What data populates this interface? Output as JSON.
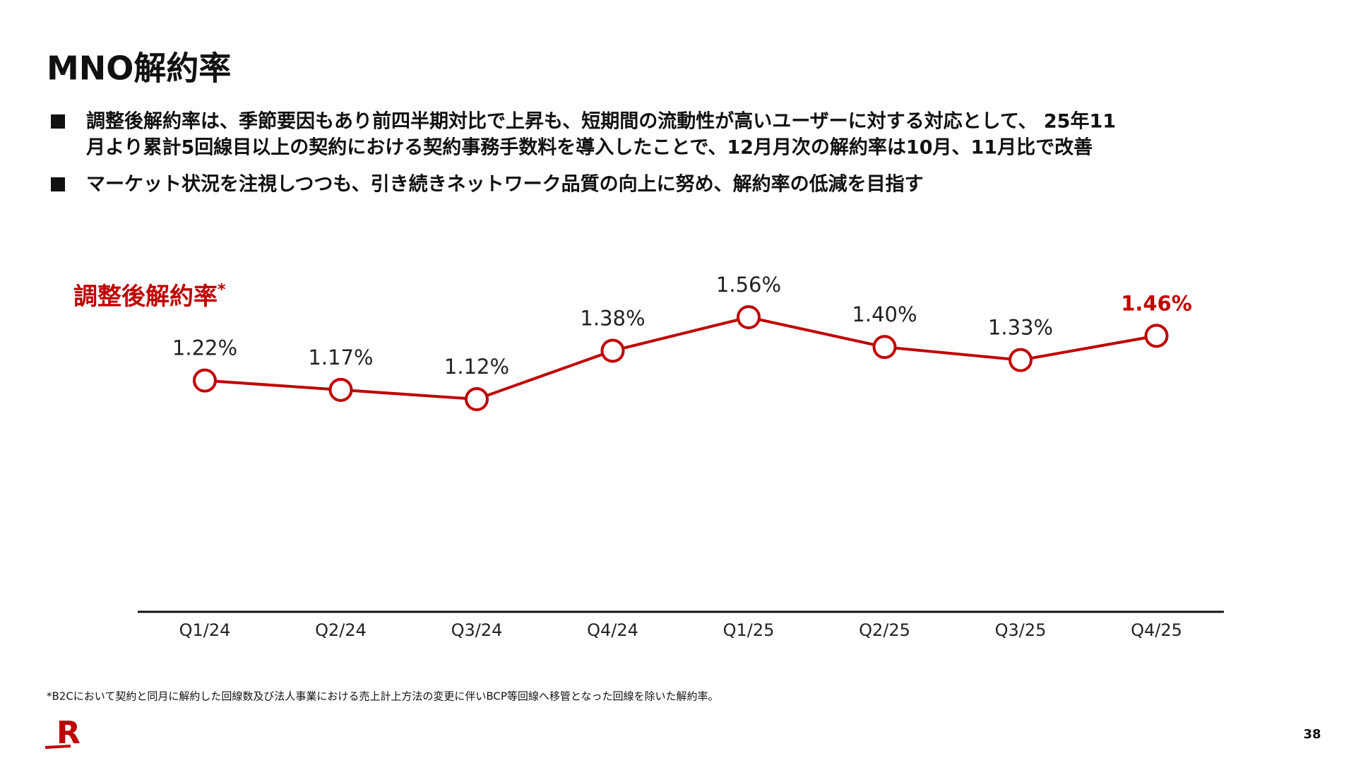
{
  "header": {
    "title": "MNO解約率"
  },
  "bullets": [
    [
      "調整後解約率は、季節要因もあり前四半期対比で上昇も、短期間の流動性が高いユーザーに対する対応として、 25年11",
      "月より累計5回線目以上の契約における契約事務手数料を導入したことで、12月月次の解約率は10月、11月比で改善"
    ],
    [
      "マーケット状況を注視しつつも、引き続きネットワーク品質の向上に努め、解約率の低減を目指す"
    ]
  ],
  "chart_data": {
    "type": "line",
    "title": "調整後解約率",
    "title_mark": "*",
    "categories": [
      "Q1/24",
      "Q2/24",
      "Q3/24",
      "Q4/24",
      "Q1/25",
      "Q2/25",
      "Q3/25",
      "Q4/25"
    ],
    "values": [
      1.22,
      1.17,
      1.12,
      1.38,
      1.56,
      1.4,
      1.33,
      1.46
    ],
    "value_labels": [
      "1.22%",
      "1.17%",
      "1.12%",
      "1.38%",
      "1.56%",
      "1.40%",
      "1.33%",
      "1.46%"
    ],
    "color": "#bf0000"
  },
  "footer": {
    "note": "*B2Cにおいて契約と同月に解約した回線数及び法人事業における売上計上方法の変更に伴いBCP等回線へ移管となった回線を除いた解約率。",
    "page": "38",
    "logo": "R"
  }
}
